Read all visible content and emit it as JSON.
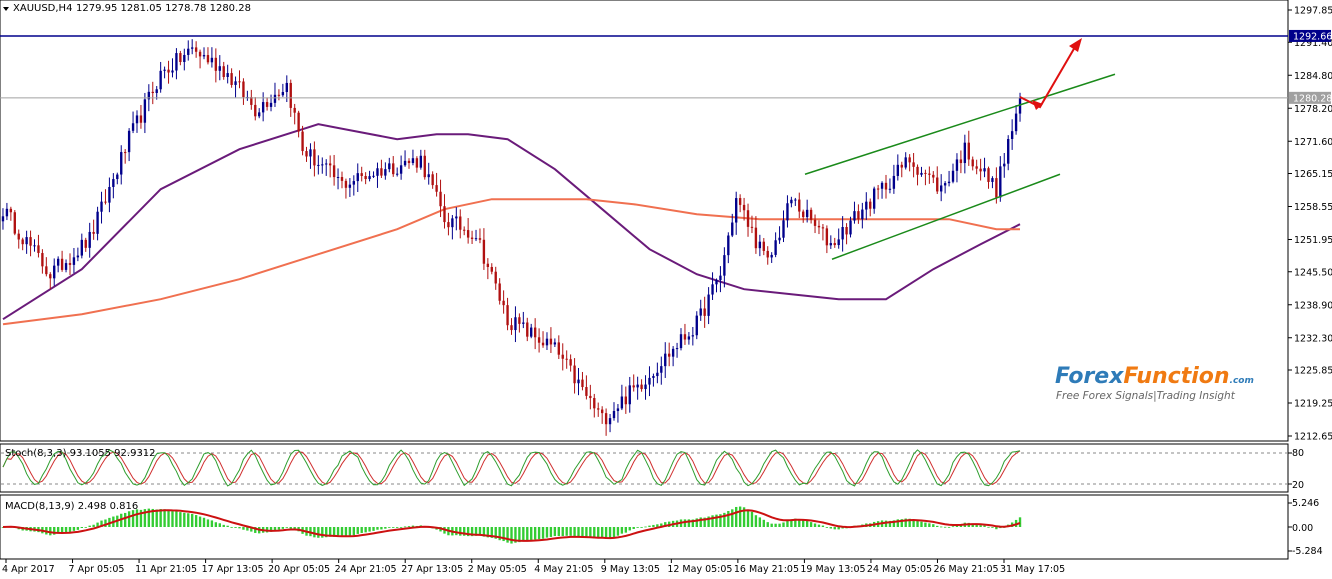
{
  "header": {
    "symbol": "XAUUSD,H4",
    "ohlc": "1279.95 1281.05 1278.78 1280.28"
  },
  "price_axis": {
    "ticks": [
      "1297.85",
      "1291.40",
      "1284.80",
      "1278.20",
      "1271.60",
      "1265.15",
      "1258.55",
      "1251.95",
      "1245.50",
      "1238.90",
      "1232.30",
      "1225.85",
      "1219.25",
      "1212.65"
    ],
    "highlight_levels": [
      {
        "label": "1292.66",
        "value": 1292.66,
        "color": "#00008b"
      },
      {
        "label": "1280.28",
        "value": 1280.28,
        "color": "#a0a0a0"
      }
    ]
  },
  "time_axis": {
    "labels": [
      "4 Apr 2017",
      "7 Apr 05:05",
      "11 Apr 21:05",
      "17 Apr 13:05",
      "20 Apr 05:05",
      "24 Apr 21:05",
      "27 Apr 13:05",
      "2 May 05:05",
      "4 May 21:05",
      "9 May 13:05",
      "12 May 05:05",
      "16 May 21:05",
      "19 May 13:05",
      "24 May 05:05",
      "26 May 21:05",
      "31 May 17:05"
    ]
  },
  "stoch": {
    "label": "Stoch(8,3,3) 93.1055 92.9312",
    "ticks": [
      "80",
      "20"
    ]
  },
  "macd": {
    "label": "MACD(8,13,9) 2.498 0.816",
    "ticks": [
      "5.246",
      "0.00",
      "-5.284"
    ]
  },
  "watermark": {
    "brand_forex": "Forex",
    "brand_function": "Function",
    "brand_com": ".com",
    "tagline": "Free Forex Signals|Trading Insight"
  },
  "colors": {
    "bull": "#00008b",
    "bear": "#b01010",
    "ma_slow": "#f07050",
    "ma_fast": "#6a1b7a",
    "channel": "#1a8a1a",
    "arrow": "#e01010",
    "stoch_main": "#2e9e2e",
    "stoch_signal": "#d03030",
    "macd_hist": "#33cc33",
    "macd_signal": "#cc1111"
  },
  "chart_data": {
    "type": "candlestick",
    "symbol": "XAUUSD",
    "timeframe": "H4",
    "ylim": [
      1210.0,
      1300.0
    ],
    "anchors": [
      {
        "t": 0,
        "p": 1258
      },
      {
        "t": 12,
        "p": 1245
      },
      {
        "t": 22,
        "p": 1252
      },
      {
        "t": 32,
        "p": 1272
      },
      {
        "t": 40,
        "p": 1285
      },
      {
        "t": 48,
        "p": 1290
      },
      {
        "t": 56,
        "p": 1286
      },
      {
        "t": 64,
        "p": 1278
      },
      {
        "t": 72,
        "p": 1283
      },
      {
        "t": 76,
        "p": 1270
      },
      {
        "t": 86,
        "p": 1263
      },
      {
        "t": 96,
        "p": 1266
      },
      {
        "t": 106,
        "p": 1268
      },
      {
        "t": 112,
        "p": 1256
      },
      {
        "t": 120,
        "p": 1253
      },
      {
        "t": 128,
        "p": 1236
      },
      {
        "t": 140,
        "p": 1230
      },
      {
        "t": 152,
        "p": 1216
      },
      {
        "t": 164,
        "p": 1225
      },
      {
        "t": 176,
        "p": 1235
      },
      {
        "t": 182,
        "p": 1245
      },
      {
        "t": 186,
        "p": 1260
      },
      {
        "t": 194,
        "p": 1247
      },
      {
        "t": 200,
        "p": 1260
      },
      {
        "t": 210,
        "p": 1251
      },
      {
        "t": 218,
        "p": 1258
      },
      {
        "t": 230,
        "p": 1268
      },
      {
        "t": 238,
        "p": 1262
      },
      {
        "t": 244,
        "p": 1270
      },
      {
        "t": 252,
        "p": 1262
      },
      {
        "t": 255,
        "p": 1271
      },
      {
        "t": 258,
        "p": 1280
      }
    ],
    "moving_averages": [
      {
        "id": "ma_fast",
        "points": [
          [
            0,
            1236
          ],
          [
            20,
            1246
          ],
          [
            40,
            1262
          ],
          [
            60,
            1270
          ],
          [
            80,
            1275
          ],
          [
            100,
            1272
          ],
          [
            110,
            1273
          ],
          [
            118,
            1273
          ],
          [
            128,
            1272
          ],
          [
            140,
            1266
          ],
          [
            152,
            1258
          ],
          [
            164,
            1250
          ],
          [
            176,
            1245
          ],
          [
            188,
            1242
          ],
          [
            200,
            1241
          ],
          [
            212,
            1240
          ],
          [
            224,
            1240
          ],
          [
            236,
            1246
          ],
          [
            248,
            1251
          ],
          [
            258,
            1255
          ]
        ]
      },
      {
        "id": "ma_slow",
        "points": [
          [
            0,
            1235
          ],
          [
            20,
            1237
          ],
          [
            40,
            1240
          ],
          [
            60,
            1244
          ],
          [
            80,
            1249
          ],
          [
            100,
            1254
          ],
          [
            112,
            1258
          ],
          [
            124,
            1260
          ],
          [
            136,
            1260
          ],
          [
            148,
            1260
          ],
          [
            160,
            1259
          ],
          [
            176,
            1257
          ],
          [
            192,
            1256
          ],
          [
            208,
            1256
          ],
          [
            224,
            1256
          ],
          [
            240,
            1256
          ],
          [
            252,
            1254
          ],
          [
            258,
            1254
          ]
        ]
      }
    ],
    "channel_lines": [
      {
        "points": [
          [
            1248,
            1265
          ],
          [
            1272,
            1285
          ]
        ]
      },
      {
        "points": [
          [
            1276,
            1248
          ],
          [
            1302,
            1265
          ]
        ]
      }
    ],
    "resistance": 1292.66,
    "current_price": 1280.28
  }
}
